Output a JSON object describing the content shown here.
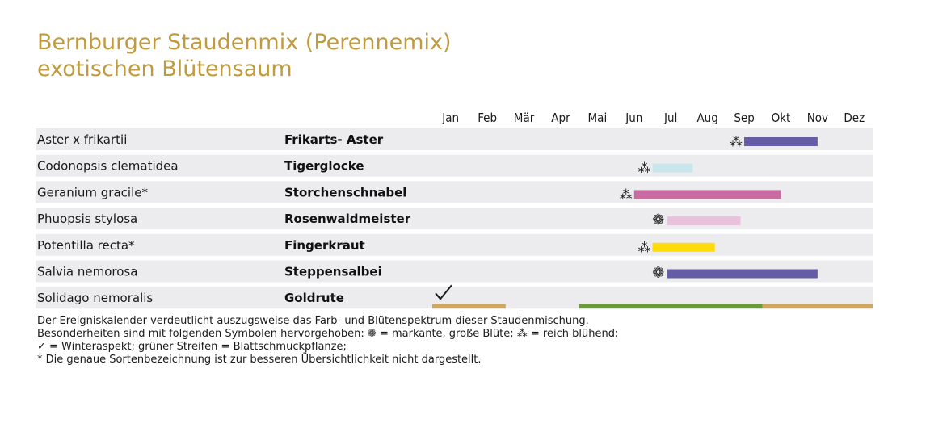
{
  "title": {
    "line1": "Bernburger Staudenmix (Perennemix)",
    "line2": "exotischen Blütensaum"
  },
  "colors": {
    "title": "#c09a3e",
    "row_bg": "#ececee",
    "violet": "#655ca6",
    "lightblue": "#c9e6ec",
    "magenta": "#c96aa1",
    "pink": "#e8c2dc",
    "yellow": "#fddc08",
    "gold": "#cfa662",
    "green": "#6a9a3a"
  },
  "chart_data": {
    "type": "gantt",
    "categories": [
      "Jan",
      "Feb",
      "Mär",
      "Apr",
      "Mai",
      "Jun",
      "Jul",
      "Aug",
      "Sep",
      "Okt",
      "Nov",
      "Dez"
    ],
    "rows": [
      {
        "latin": "Aster x frikartii",
        "german": "Frikarts- Aster",
        "symbol": "reich",
        "bars": [
          {
            "start": 8.5,
            "end": 10.5,
            "color": "#655ca6"
          }
        ]
      },
      {
        "latin": "Codonopsis clematidea",
        "german": "Tigerglocke",
        "symbol": "reich",
        "bars": [
          {
            "start": 6.0,
            "end": 7.1,
            "color": "#c9e6ec"
          }
        ]
      },
      {
        "latin": "Geranium gracile*",
        "german": "Storchenschnabel",
        "symbol": "reich",
        "bars": [
          {
            "start": 5.5,
            "end": 9.5,
            "color": "#c96aa1"
          }
        ]
      },
      {
        "latin": "Phuopsis stylosa",
        "german": "Rosenwaldmeister",
        "symbol": "markant",
        "bars": [
          {
            "start": 6.4,
            "end": 8.4,
            "color": "#e8c2dc"
          }
        ]
      },
      {
        "latin": "Potentilla recta*",
        "german": "Fingerkraut",
        "symbol": "reich",
        "bars": [
          {
            "start": 6.0,
            "end": 7.7,
            "color": "#fddc08"
          }
        ]
      },
      {
        "latin": "Salvia nemorosa",
        "german": "Steppensalbei",
        "symbol": "markant",
        "bars": [
          {
            "start": 6.4,
            "end": 10.5,
            "color": "#655ca6"
          }
        ]
      },
      {
        "latin": "Solidago nemoralis",
        "german": "Goldrute",
        "symbol": "winter",
        "bars": [
          {
            "start": 0.0,
            "end": 2.0,
            "color": "#cfa662"
          },
          {
            "start": 4.0,
            "end": 9.0,
            "color": "#6a9a3a"
          },
          {
            "start": 9.0,
            "end": 12.0,
            "color": "#cfa662"
          }
        ]
      }
    ]
  },
  "notes": {
    "line1": "Der Ereigniskalender verdeutlicht auszugsweise das Farb- und Blütenspektrum dieser Staudenmischung.",
    "line2": "Besonderheiten sind mit folgenden Symbolen hervorgehoben: ❁ = markante, große Blüte; ⁂ = reich blühend;",
    "line3": "✓ = Winteraspekt; grüner Streifen = Blattschmuckpflanze;",
    "line4": "* Die genaue Sortenbezeichnung ist zur besseren Übersichtlichkeit nicht dargestellt."
  }
}
